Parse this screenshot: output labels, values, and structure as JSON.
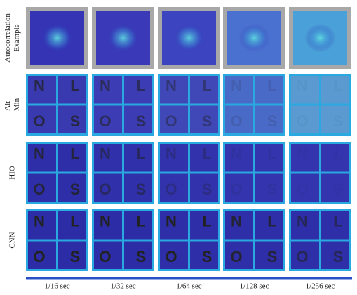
{
  "row_labels": [
    [
      "Autocorrelation",
      "Example"
    ],
    [
      "Alt-",
      "Min"
    ],
    [
      "HIO"
    ],
    [
      "CNN"
    ]
  ],
  "column_labels": [
    "1/16 sec",
    "1/32 sec",
    "1/64 sec",
    "1/128 sec",
    "1/256 sec"
  ],
  "glyphs": [
    "N",
    "L",
    "O",
    "S"
  ]
}
